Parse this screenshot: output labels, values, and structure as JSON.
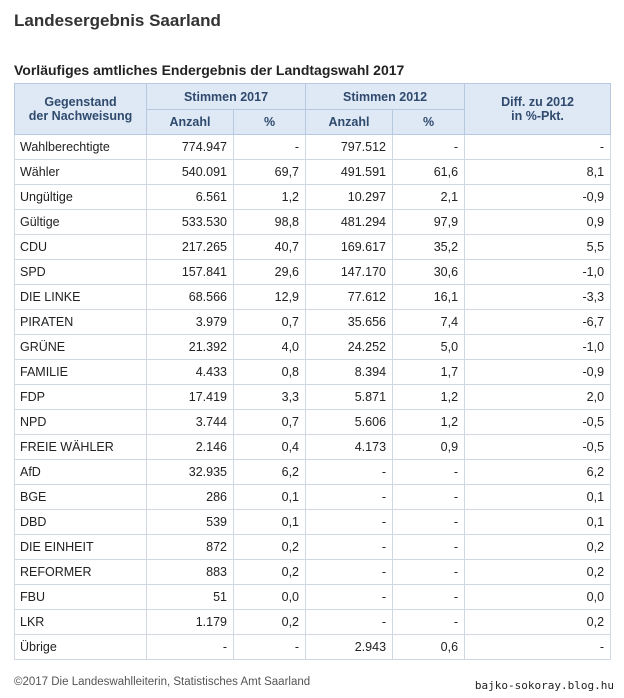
{
  "title": "Landesergebnis Saarland",
  "subtitle": "Vorläufiges amtliches Endergebnis der Landtagswahl 2017",
  "table": {
    "header": {
      "subject_line1": "Gegenstand",
      "subject_line2": "der Nachweisung",
      "votes2017": "Stimmen  2017",
      "votes2012": "Stimmen  2012",
      "diff_line1": "Diff. zu  2012",
      "diff_line2": "in %-Pkt.",
      "count": "Anzahl",
      "pct": "%"
    },
    "rows": [
      {
        "name": "Wahlberechtigte",
        "n2017": "774.947",
        "p2017": "-",
        "n2012": "797.512",
        "p2012": "-",
        "diff": "-"
      },
      {
        "name": "Wähler",
        "n2017": "540.091",
        "p2017": "69,7",
        "n2012": "491.591",
        "p2012": "61,6",
        "diff": "8,1"
      },
      {
        "name": "Ungültige",
        "n2017": "6.561",
        "p2017": "1,2",
        "n2012": "10.297",
        "p2012": "2,1",
        "diff": "-0,9"
      },
      {
        "name": "Gültige",
        "n2017": "533.530",
        "p2017": "98,8",
        "n2012": "481.294",
        "p2012": "97,9",
        "diff": "0,9"
      },
      {
        "name": "CDU",
        "n2017": "217.265",
        "p2017": "40,7",
        "n2012": "169.617",
        "p2012": "35,2",
        "diff": "5,5"
      },
      {
        "name": "SPD",
        "n2017": "157.841",
        "p2017": "29,6",
        "n2012": "147.170",
        "p2012": "30,6",
        "diff": "-1,0"
      },
      {
        "name": "DIE LINKE",
        "n2017": "68.566",
        "p2017": "12,9",
        "n2012": "77.612",
        "p2012": "16,1",
        "diff": "-3,3"
      },
      {
        "name": "PIRATEN",
        "n2017": "3.979",
        "p2017": "0,7",
        "n2012": "35.656",
        "p2012": "7,4",
        "diff": "-6,7"
      },
      {
        "name": "GRÜNE",
        "n2017": "21.392",
        "p2017": "4,0",
        "n2012": "24.252",
        "p2012": "5,0",
        "diff": "-1,0"
      },
      {
        "name": "FAMILIE",
        "n2017": "4.433",
        "p2017": "0,8",
        "n2012": "8.394",
        "p2012": "1,7",
        "diff": "-0,9"
      },
      {
        "name": "FDP",
        "n2017": "17.419",
        "p2017": "3,3",
        "n2012": "5.871",
        "p2012": "1,2",
        "diff": "2,0"
      },
      {
        "name": "NPD",
        "n2017": "3.744",
        "p2017": "0,7",
        "n2012": "5.606",
        "p2012": "1,2",
        "diff": "-0,5"
      },
      {
        "name": "FREIE WÄHLER",
        "n2017": "2.146",
        "p2017": "0,4",
        "n2012": "4.173",
        "p2012": "0,9",
        "diff": "-0,5"
      },
      {
        "name": "AfD",
        "n2017": "32.935",
        "p2017": "6,2",
        "n2012": "-",
        "p2012": "-",
        "diff": "6,2"
      },
      {
        "name": "BGE",
        "n2017": "286",
        "p2017": "0,1",
        "n2012": "-",
        "p2012": "-",
        "diff": "0,1"
      },
      {
        "name": "DBD",
        "n2017": "539",
        "p2017": "0,1",
        "n2012": "-",
        "p2012": "-",
        "diff": "0,1"
      },
      {
        "name": "DIE EINHEIT",
        "n2017": "872",
        "p2017": "0,2",
        "n2012": "-",
        "p2012": "-",
        "diff": "0,2"
      },
      {
        "name": "REFORMER",
        "n2017": "883",
        "p2017": "0,2",
        "n2012": "-",
        "p2012": "-",
        "diff": "0,2"
      },
      {
        "name": "FBU",
        "n2017": "51",
        "p2017": "0,0",
        "n2012": "-",
        "p2012": "-",
        "diff": "0,0"
      },
      {
        "name": "LKR",
        "n2017": "1.179",
        "p2017": "0,2",
        "n2012": "-",
        "p2012": "-",
        "diff": "0,2"
      },
      {
        "name": "Übrige",
        "n2017": "-",
        "p2017": "-",
        "n2012": "2.943",
        "p2012": "0,6",
        "diff": "-"
      }
    ]
  },
  "footer": "©2017 Die Landeswahlleiterin, Statistisches Amt Saarland",
  "watermark": "bajko-sokoray.blog.hu",
  "colors": {
    "header_bg": "#dfe9f6",
    "header_text": "#2f4a6d",
    "border": "#cfd8e3"
  }
}
